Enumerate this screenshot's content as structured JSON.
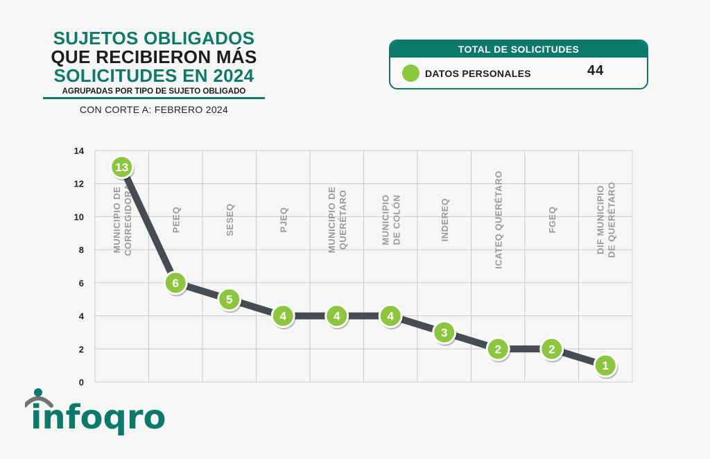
{
  "title": {
    "line1": "SUJETOS OBLIGADOS",
    "line2": "QUE RECIBIERON MÁS",
    "line3": "SOLICITUDES EN 2024",
    "subtitle": "AGRUPADAS POR TIPO DE SUJETO OBLIGADO"
  },
  "cutoff": "CON CORTE A: FEBRERO 2024",
  "total_box": {
    "header": "TOTAL DE SOLICITUDES",
    "legend_label": "DATOS PERSONALES",
    "legend_value": "44"
  },
  "logo": {
    "text": "infoqro"
  },
  "colors": {
    "teal": "#0b7a6b",
    "green": "#8cc63f",
    "line": "#474c52"
  },
  "chart_data": {
    "type": "line",
    "categories": [
      "MUNICIPIO DE CORREGIDORA",
      "PEEQ",
      "SESEQ",
      "PJEQ",
      "MUNICIPIO DE QUERÉTARO",
      "MUNICIPIO DE COLÓN",
      "INDEREQ",
      "ICATEQ QUERÉTARO",
      "FGEQ",
      "DIF MUNICIPIO DE QUERÉTARO"
    ],
    "category_lines": [
      [
        "MUNICIPIO DE",
        "CORREGIDORA"
      ],
      [
        "PEEQ"
      ],
      [
        "SESEQ"
      ],
      [
        "PJEQ"
      ],
      [
        "MUNICIPIO DE",
        "QUERÉTARO"
      ],
      [
        "MUNICIPIO",
        "DE COLÓN"
      ],
      [
        "INDEREQ"
      ],
      [
        "ICATEQ QUERÉTARO"
      ],
      [
        "FGEQ"
      ],
      [
        "DIF MUNICIPIO",
        "DE QUERÉTARO"
      ]
    ],
    "values": [
      13,
      6,
      5,
      4,
      4,
      4,
      3,
      2,
      2,
      1
    ],
    "yticks": [
      0,
      2,
      4,
      6,
      8,
      10,
      12,
      14
    ],
    "ylim": [
      0,
      14
    ],
    "grid": true
  }
}
